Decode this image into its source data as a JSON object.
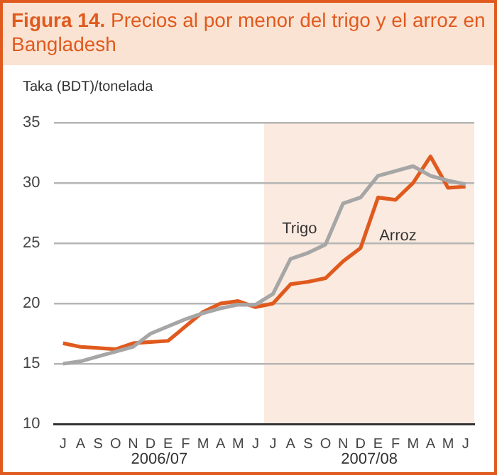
{
  "chart_data": {
    "type": "line",
    "title": "Figura 14. Precios al por menor del trigo y el arroz en Bangladesh",
    "ylabel": "Taka (BDT)/tonelada",
    "categories": [
      "J",
      "A",
      "S",
      "O",
      "N",
      "D",
      "E",
      "F",
      "M",
      "A",
      "M",
      "J",
      "J",
      "A",
      "S",
      "O",
      "N",
      "D",
      "E",
      "F",
      "M",
      "A",
      "M",
      "J"
    ],
    "series": [
      {
        "name": "Trigo",
        "color": "#a6a6a6",
        "values": [
          15.0,
          15.2,
          15.6,
          16.0,
          16.4,
          17.5,
          18.1,
          18.7,
          19.2,
          19.6,
          19.9,
          19.9,
          20.8,
          23.7,
          24.2,
          24.9,
          28.3,
          28.8,
          30.6,
          31.0,
          31.4,
          30.6,
          30.2,
          29.9
        ]
      },
      {
        "name": "Arroz",
        "color": "#e05a1e",
        "values": [
          16.7,
          16.4,
          16.3,
          16.2,
          16.7,
          16.8,
          16.9,
          18.1,
          19.3,
          20.0,
          20.2,
          19.7,
          20.0,
          21.6,
          21.8,
          22.1,
          23.5,
          24.6,
          28.8,
          28.6,
          30.0,
          32.2,
          29.6,
          29.7
        ]
      }
    ],
    "ylim": [
      10,
      35
    ],
    "yticks": [
      10,
      15,
      20,
      25,
      30,
      35
    ],
    "grid": "y",
    "legend": false,
    "marker": "none",
    "line_style": "solid",
    "annotations": [
      "2006/07",
      "2007/08"
    ]
  }
}
